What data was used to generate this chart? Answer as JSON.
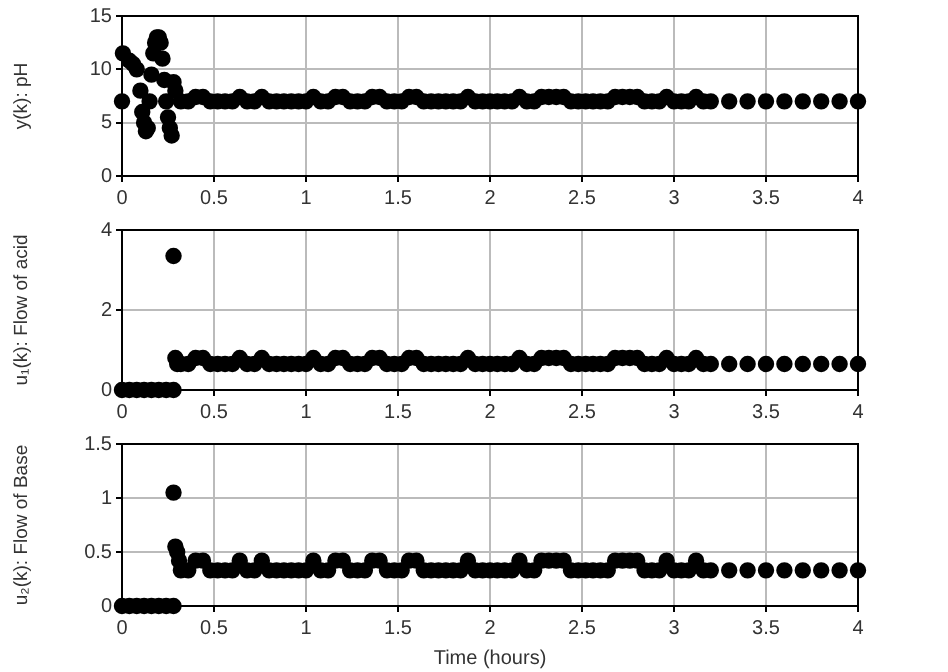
{
  "chart_data": [
    {
      "type": "scatter",
      "ylabel": "y(k): pH",
      "marker": "circle",
      "grid": true,
      "xlim": [
        0,
        4
      ],
      "xticks": [
        0,
        0.5,
        1,
        1.5,
        2,
        2.5,
        3,
        3.5,
        4
      ],
      "ylim": [
        0,
        15
      ],
      "yticks": [
        0,
        5,
        10,
        15
      ],
      "color": "#000000",
      "x": [
        0,
        0.005,
        0.04,
        0.06,
        0.08,
        0.1,
        0.11,
        0.12,
        0.13,
        0.14,
        0.15,
        0.16,
        0.17,
        0.18,
        0.19,
        0.2,
        0.21,
        0.22,
        0.23,
        0.24,
        0.25,
        0.26,
        0.27,
        0.28,
        0.29,
        0.32,
        0.36,
        0.4,
        0.44,
        0.48,
        0.52,
        0.56,
        0.6,
        0.64,
        0.68,
        0.72,
        0.76,
        0.8,
        0.84,
        0.88,
        0.92,
        0.96,
        1,
        1.04,
        1.08,
        1.12,
        1.16,
        1.2,
        1.24,
        1.28,
        1.32,
        1.36,
        1.4,
        1.44,
        1.48,
        1.52,
        1.56,
        1.6,
        1.64,
        1.68,
        1.72,
        1.76,
        1.8,
        1.84,
        1.88,
        1.92,
        1.96,
        2,
        2.04,
        2.08,
        2.12,
        2.16,
        2.2,
        2.24,
        2.28,
        2.32,
        2.36,
        2.4,
        2.44,
        2.48,
        2.52,
        2.56,
        2.6,
        2.64,
        2.68,
        2.72,
        2.76,
        2.8,
        2.84,
        2.88,
        2.92,
        2.96,
        3,
        3.04,
        3.08,
        3.12,
        3.16,
        3.2,
        3.3,
        3.4,
        3.5,
        3.6,
        3.7,
        3.8,
        3.9,
        4
      ],
      "values": [
        7,
        11.5,
        10.8,
        10.5,
        10,
        8,
        6,
        5,
        4.2,
        4.5,
        7,
        9.5,
        11.5,
        12.5,
        13,
        13,
        12.5,
        11,
        9,
        7,
        5.5,
        4.5,
        3.8,
        8.8,
        8,
        7,
        7,
        7.4,
        7.4,
        7,
        7,
        7,
        7,
        7.4,
        7,
        7,
        7.4,
        7,
        7,
        7,
        7,
        7,
        7,
        7.4,
        7,
        7,
        7.4,
        7.4,
        7,
        7,
        7,
        7.4,
        7.4,
        7,
        7,
        7,
        7.4,
        7.4,
        7,
        7,
        7,
        7,
        7,
        7,
        7.4,
        7,
        7,
        7,
        7,
        7,
        7,
        7.4,
        7,
        7,
        7.4,
        7.4,
        7.4,
        7.4,
        7,
        7,
        7,
        7,
        7,
        7,
        7.4,
        7.4,
        7.4,
        7.4,
        7,
        7,
        7,
        7.4,
        7,
        7,
        7,
        7.4,
        7,
        7,
        7,
        7,
        7,
        7,
        7,
        7,
        7,
        7
      ]
    },
    {
      "type": "scatter",
      "ylabel": "u₁(k): Flow of acid",
      "marker": "circle",
      "grid": true,
      "xlim": [
        0,
        4
      ],
      "xticks": [
        0,
        0.5,
        1,
        1.5,
        2,
        2.5,
        3,
        3.5,
        4
      ],
      "ylim": [
        0,
        4
      ],
      "yticks": [
        0,
        2,
        4
      ],
      "color": "#000000",
      "x": [
        0,
        0.04,
        0.08,
        0.12,
        0.16,
        0.2,
        0.24,
        0.28,
        0.28,
        0.29,
        0.3,
        0.32,
        0.36,
        0.4,
        0.44,
        0.48,
        0.52,
        0.56,
        0.6,
        0.64,
        0.68,
        0.72,
        0.76,
        0.8,
        0.84,
        0.88,
        0.92,
        0.96,
        1,
        1.04,
        1.08,
        1.12,
        1.16,
        1.2,
        1.24,
        1.28,
        1.32,
        1.36,
        1.4,
        1.44,
        1.48,
        1.52,
        1.56,
        1.6,
        1.64,
        1.68,
        1.72,
        1.76,
        1.8,
        1.84,
        1.88,
        1.92,
        1.96,
        2,
        2.04,
        2.08,
        2.12,
        2.16,
        2.2,
        2.24,
        2.28,
        2.32,
        2.36,
        2.4,
        2.44,
        2.48,
        2.52,
        2.56,
        2.6,
        2.64,
        2.68,
        2.72,
        2.76,
        2.8,
        2.84,
        2.88,
        2.92,
        2.96,
        3,
        3.04,
        3.08,
        3.12,
        3.16,
        3.2,
        3.3,
        3.4,
        3.5,
        3.6,
        3.7,
        3.8,
        3.9,
        4
      ],
      "values": [
        0,
        0,
        0,
        0,
        0,
        0,
        0,
        0,
        3.35,
        0.8,
        0.65,
        0.65,
        0.65,
        0.8,
        0.8,
        0.65,
        0.65,
        0.65,
        0.65,
        0.8,
        0.65,
        0.65,
        0.8,
        0.65,
        0.65,
        0.65,
        0.65,
        0.65,
        0.65,
        0.8,
        0.65,
        0.65,
        0.8,
        0.8,
        0.65,
        0.65,
        0.65,
        0.8,
        0.8,
        0.65,
        0.65,
        0.65,
        0.8,
        0.8,
        0.65,
        0.65,
        0.65,
        0.65,
        0.65,
        0.65,
        0.8,
        0.65,
        0.65,
        0.65,
        0.65,
        0.65,
        0.65,
        0.8,
        0.65,
        0.65,
        0.8,
        0.8,
        0.8,
        0.8,
        0.65,
        0.65,
        0.65,
        0.65,
        0.65,
        0.65,
        0.8,
        0.8,
        0.8,
        0.8,
        0.65,
        0.65,
        0.65,
        0.8,
        0.65,
        0.65,
        0.65,
        0.8,
        0.65,
        0.65,
        0.65,
        0.65,
        0.65,
        0.65,
        0.65,
        0.65,
        0.65,
        0.65
      ]
    },
    {
      "type": "scatter",
      "ylabel": "u₂(k): Flow of Base",
      "xlabel": "Time (hours)",
      "marker": "circle",
      "grid": true,
      "xlim": [
        0,
        4
      ],
      "xticks": [
        0,
        0.5,
        1,
        1.5,
        2,
        2.5,
        3,
        3.5,
        4
      ],
      "ylim": [
        0,
        1.5
      ],
      "yticks": [
        0,
        0.5,
        1,
        1.5
      ],
      "color": "#000000",
      "x": [
        0,
        0.04,
        0.08,
        0.12,
        0.16,
        0.2,
        0.24,
        0.28,
        0.28,
        0.29,
        0.3,
        0.31,
        0.32,
        0.36,
        0.4,
        0.44,
        0.48,
        0.52,
        0.56,
        0.6,
        0.64,
        0.68,
        0.72,
        0.76,
        0.8,
        0.84,
        0.88,
        0.92,
        0.96,
        1,
        1.04,
        1.08,
        1.12,
        1.16,
        1.2,
        1.24,
        1.28,
        1.32,
        1.36,
        1.4,
        1.44,
        1.48,
        1.52,
        1.56,
        1.6,
        1.64,
        1.68,
        1.72,
        1.76,
        1.8,
        1.84,
        1.88,
        1.92,
        1.96,
        2,
        2.04,
        2.08,
        2.12,
        2.16,
        2.2,
        2.24,
        2.28,
        2.32,
        2.36,
        2.4,
        2.44,
        2.48,
        2.52,
        2.56,
        2.6,
        2.64,
        2.68,
        2.72,
        2.76,
        2.8,
        2.84,
        2.88,
        2.92,
        2.96,
        3,
        3.04,
        3.08,
        3.12,
        3.16,
        3.2,
        3.3,
        3.4,
        3.5,
        3.6,
        3.7,
        3.8,
        3.9,
        4
      ],
      "values": [
        0,
        0,
        0,
        0,
        0,
        0,
        0,
        0,
        1.05,
        0.55,
        0.5,
        0.42,
        0.33,
        0.33,
        0.42,
        0.42,
        0.33,
        0.33,
        0.33,
        0.33,
        0.42,
        0.33,
        0.33,
        0.42,
        0.33,
        0.33,
        0.33,
        0.33,
        0.33,
        0.33,
        0.42,
        0.33,
        0.33,
        0.42,
        0.42,
        0.33,
        0.33,
        0.33,
        0.42,
        0.42,
        0.33,
        0.33,
        0.33,
        0.42,
        0.42,
        0.33,
        0.33,
        0.33,
        0.33,
        0.33,
        0.33,
        0.42,
        0.33,
        0.33,
        0.33,
        0.33,
        0.33,
        0.33,
        0.42,
        0.33,
        0.33,
        0.42,
        0.42,
        0.42,
        0.42,
        0.33,
        0.33,
        0.33,
        0.33,
        0.33,
        0.33,
        0.42,
        0.42,
        0.42,
        0.42,
        0.33,
        0.33,
        0.33,
        0.42,
        0.33,
        0.33,
        0.33,
        0.42,
        0.33,
        0.33,
        0.33,
        0.33,
        0.33,
        0.33,
        0.33,
        0.33,
        0.33,
        0.33
      ]
    }
  ]
}
